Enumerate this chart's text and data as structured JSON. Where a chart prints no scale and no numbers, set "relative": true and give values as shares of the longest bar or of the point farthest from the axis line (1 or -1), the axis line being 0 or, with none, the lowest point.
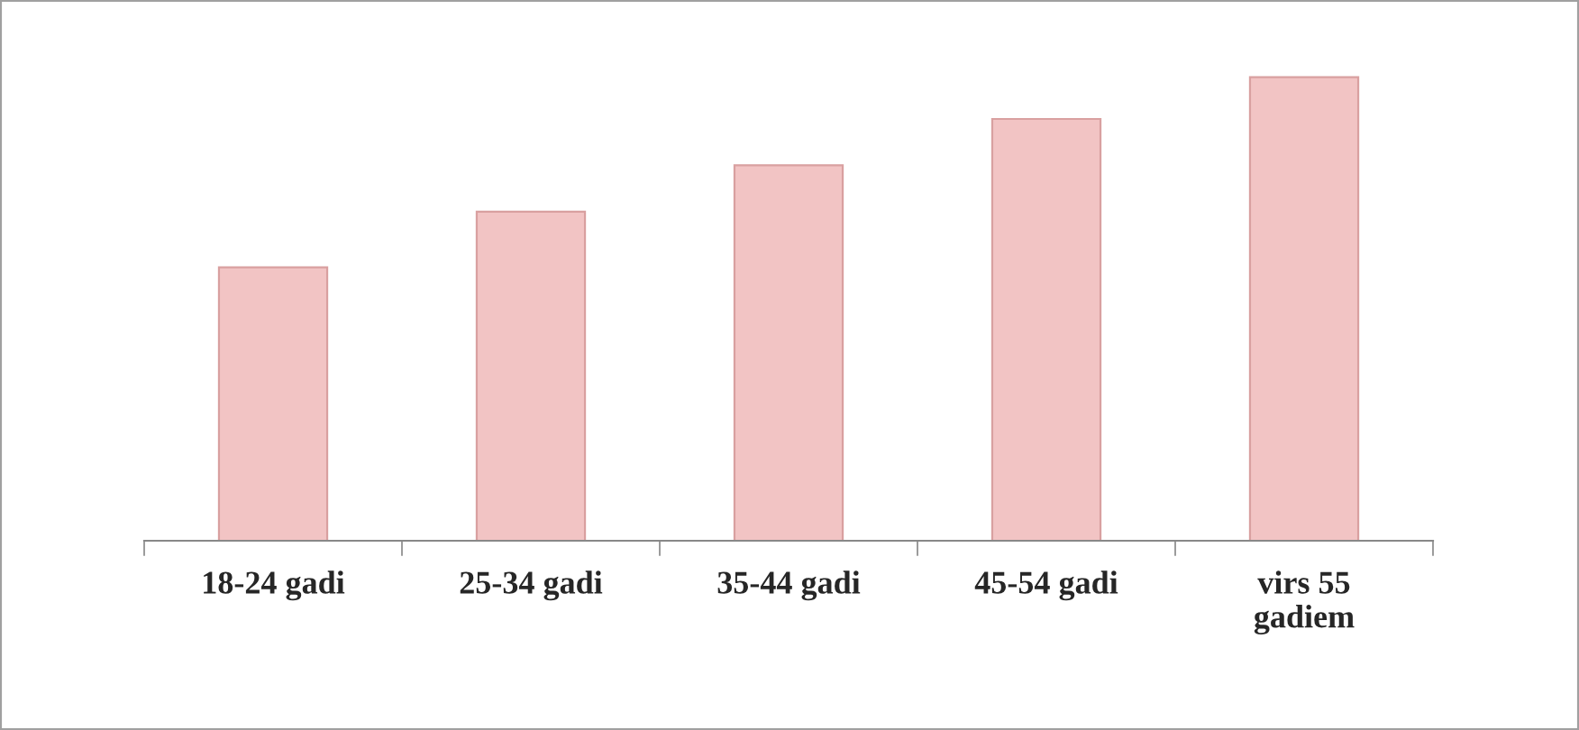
{
  "chart_data": {
    "type": "bar",
    "relative": true,
    "categories": [
      "18-24 gadi",
      "25-34 gadi",
      "35-44 gadi",
      "45-54 gadi",
      "virs 55 gadiem"
    ],
    "values": [
      0.59,
      0.71,
      0.81,
      0.91,
      1.0
    ],
    "color": "#f2c4c4",
    "grid": false,
    "legend": false
  }
}
